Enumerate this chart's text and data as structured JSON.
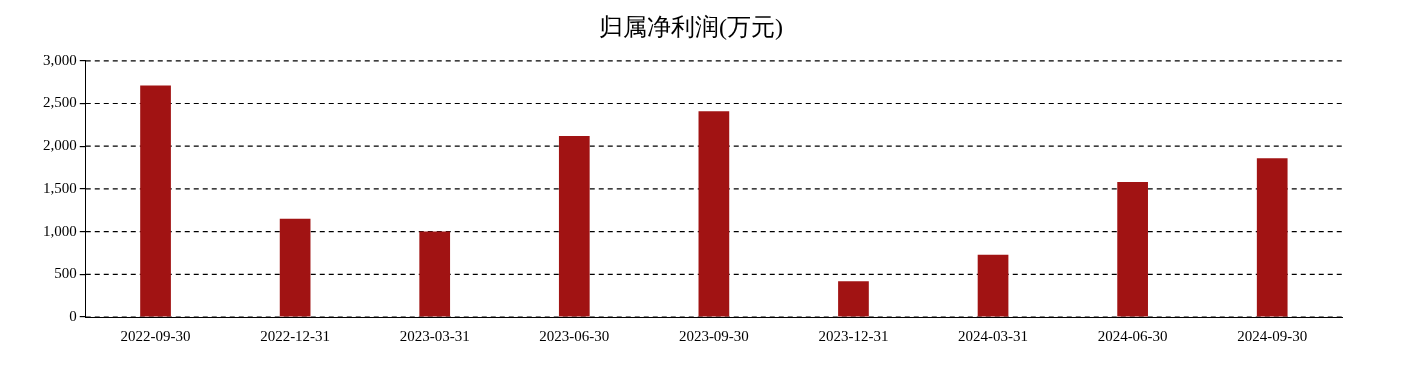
{
  "chart_data": {
    "type": "bar",
    "title": "归属净利润(万元)",
    "categories": [
      "2022-09-30",
      "2022-12-31",
      "2023-03-31",
      "2023-06-30",
      "2023-09-30",
      "2023-12-31",
      "2024-03-31",
      "2024-06-30",
      "2024-09-30"
    ],
    "values": [
      2710,
      1150,
      1000,
      2120,
      2410,
      420,
      730,
      1580,
      1860
    ],
    "color": "#a11313",
    "ylim": [
      0,
      3000
    ],
    "yticks": [
      0,
      {
        "value": 500,
        "label": "500"
      },
      {
        "value": 1000,
        "label": "1,000"
      },
      {
        "value": 1500,
        "label": "1,500"
      },
      {
        "value": 2000,
        "label": "2,000"
      },
      {
        "value": 2500,
        "label": "2,500"
      },
      {
        "value": 3000,
        "label": "3,000"
      }
    ],
    "grid": "y",
    "legend": false
  }
}
